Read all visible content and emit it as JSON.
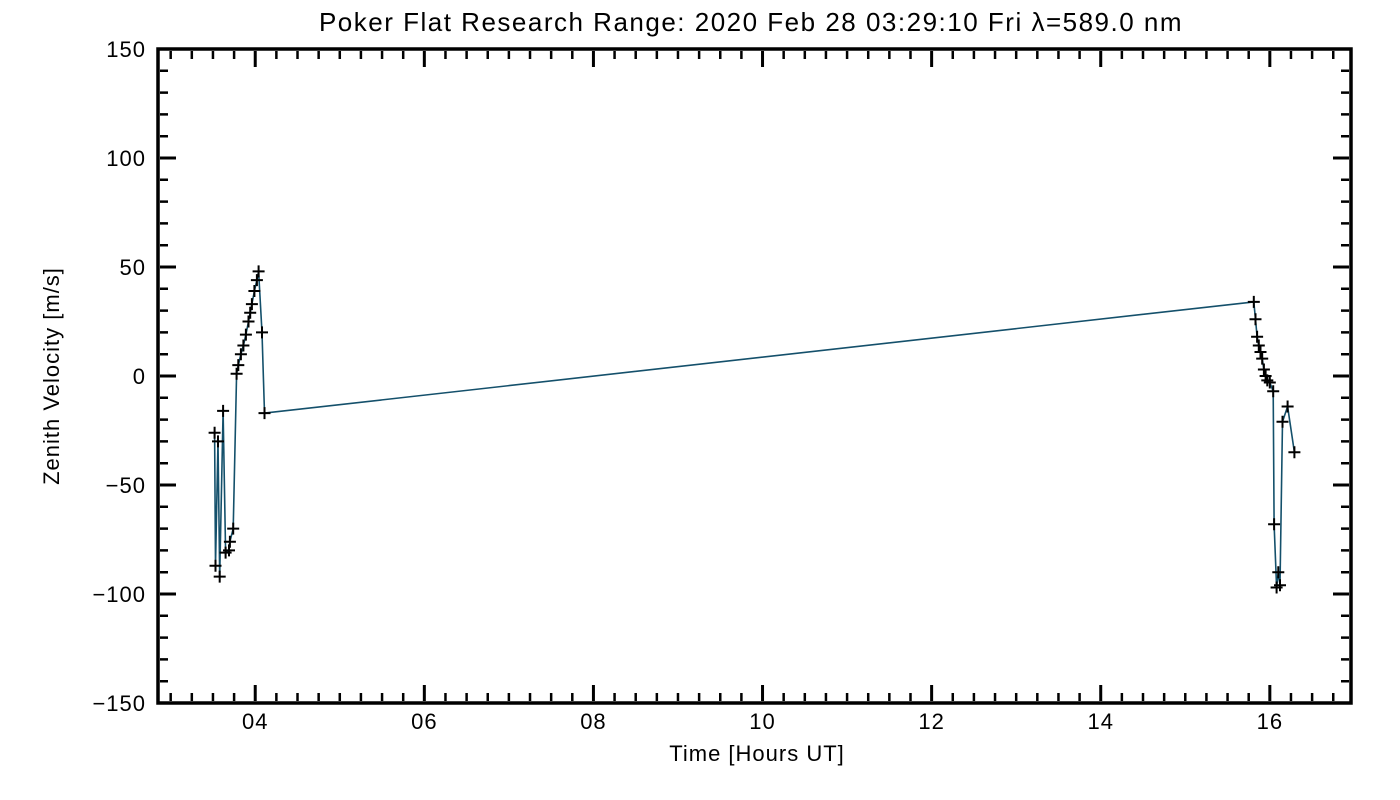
{
  "chart_data": {
    "type": "line",
    "title": "Poker Flat Research Range: 2020 Feb 28 03:29:10 Fri λ=589.0 nm",
    "xlabel": "Time [Hours UT]",
    "ylabel": "Zenith Velocity [m/s]",
    "xlim": [
      2.85,
      16.96
    ],
    "ylim": [
      -150,
      150
    ],
    "x_major_ticks": [
      4,
      6,
      8,
      10,
      12,
      14,
      16
    ],
    "x_tick_labels": [
      "04",
      "06",
      "08",
      "10",
      "12",
      "14",
      "16"
    ],
    "x_minor_step": 0.25,
    "y_major_ticks": [
      -150,
      -100,
      -50,
      0,
      50,
      100,
      150
    ],
    "y_tick_labels": [
      "−150",
      "−100",
      "−50",
      "0",
      "50",
      "100",
      "150"
    ],
    "y_minor_step": 10,
    "grid": false,
    "legend": null,
    "marker": "plus",
    "line_color": "#14506b",
    "marker_color": "#000000",
    "axis_color": "#000000",
    "background_color": "#ffffff",
    "series": [
      {
        "name": "zenith-velocity",
        "points": [
          [
            3.52,
            -26
          ],
          [
            3.53,
            -87
          ],
          [
            3.56,
            -30
          ],
          [
            3.58,
            -92
          ],
          [
            3.62,
            -16
          ],
          [
            3.65,
            -81
          ],
          [
            3.69,
            -80
          ],
          [
            3.7,
            -76
          ],
          [
            3.74,
            -70
          ],
          [
            3.78,
            1
          ],
          [
            3.8,
            5
          ],
          [
            3.83,
            10
          ],
          [
            3.86,
            14
          ],
          [
            3.89,
            19
          ],
          [
            3.92,
            25
          ],
          [
            3.94,
            29
          ],
          [
            3.96,
            33
          ],
          [
            3.99,
            39
          ],
          [
            4.02,
            44
          ],
          [
            4.04,
            48
          ],
          [
            4.08,
            20
          ],
          [
            4.11,
            -17
          ],
          [
            15.81,
            34
          ],
          [
            15.83,
            26
          ],
          [
            15.85,
            18
          ],
          [
            15.87,
            14
          ],
          [
            15.89,
            11
          ],
          [
            15.91,
            8
          ],
          [
            15.93,
            3
          ],
          [
            15.95,
            0
          ],
          [
            15.97,
            -2
          ],
          [
            16.0,
            -3
          ],
          [
            16.04,
            -7
          ],
          [
            16.05,
            -68
          ],
          [
            16.08,
            -97
          ],
          [
            16.1,
            -90
          ],
          [
            16.12,
            -96
          ],
          [
            16.15,
            -21
          ],
          [
            16.21,
            -14
          ],
          [
            16.29,
            -35
          ]
        ]
      }
    ]
  }
}
